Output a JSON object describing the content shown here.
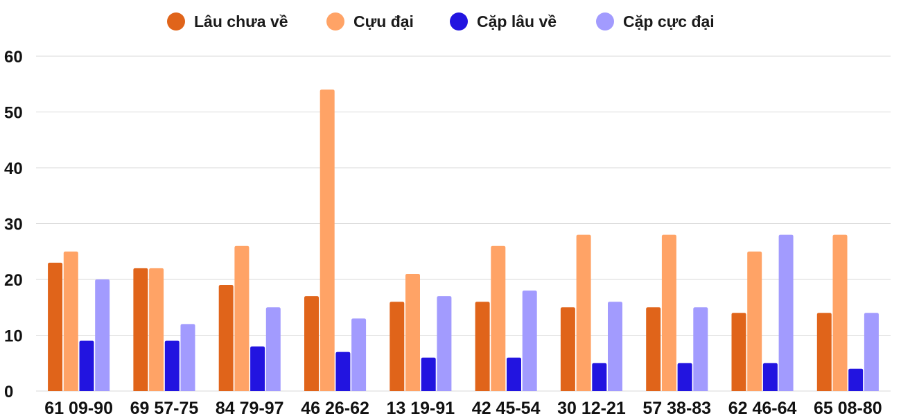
{
  "chart_data": {
    "type": "bar",
    "categories": [
      "61 09-90",
      "69 57-75",
      "84 79-97",
      "46 26-62",
      "13 19-91",
      "42 45-54",
      "30 12-21",
      "57 38-83",
      "62 46-64",
      "65 08-80"
    ],
    "series": [
      {
        "name": "Lâu chưa về",
        "color": "#e0641a",
        "values": [
          23,
          22,
          19,
          17,
          16,
          16,
          15,
          15,
          14,
          14
        ]
      },
      {
        "name": "Cựu đại",
        "color": "#ffa366",
        "values": [
          25,
          22,
          26,
          54,
          21,
          26,
          28,
          28,
          25,
          28
        ]
      },
      {
        "name": "Cặp lâu về",
        "color": "#2214e0",
        "values": [
          9,
          9,
          8,
          7,
          6,
          6,
          5,
          5,
          5,
          4
        ]
      },
      {
        "name": "Cặp cực đại",
        "color": "#a29bfe",
        "values": [
          20,
          12,
          15,
          13,
          17,
          18,
          16,
          15,
          28,
          14
        ]
      }
    ],
    "yticks": [
      0,
      10,
      20,
      30,
      40,
      50,
      60
    ],
    "ylim": [
      0,
      60
    ],
    "grid": true,
    "legend_position": "top"
  }
}
